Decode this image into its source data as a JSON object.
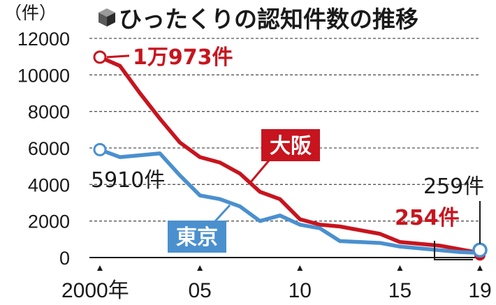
{
  "title": "ひったくりの認知件数の推移",
  "unit_label": "（件）",
  "colors": {
    "osaka": "#c8141e",
    "tokyo": "#4a90cf",
    "grid": "#555555",
    "text": "#1a1a1a"
  },
  "chart_data": {
    "type": "line",
    "title": "ひったくりの認知件数の推移",
    "xlabel": "",
    "ylabel": "（件）",
    "ylim": [
      0,
      12000
    ],
    "yticks": [
      "0",
      "2000",
      "4000",
      "6000",
      "8000",
      "10000",
      "12000"
    ],
    "ytick_values": [
      0,
      2000,
      4000,
      6000,
      8000,
      10000,
      12000
    ],
    "xticks": [
      {
        "year": 2000,
        "label": "2000年"
      },
      {
        "year": 2005,
        "label": "05"
      },
      {
        "year": 2010,
        "label": "10"
      },
      {
        "year": 2015,
        "label": "15"
      },
      {
        "year": 2019,
        "label": "19"
      }
    ],
    "grid": true,
    "x": [
      2000,
      2001,
      2002,
      2003,
      2004,
      2005,
      2006,
      2007,
      2008,
      2009,
      2010,
      2011,
      2012,
      2013,
      2014,
      2015,
      2016,
      2017,
      2018,
      2019
    ],
    "series": [
      {
        "name": "大阪",
        "values": [
          10973,
          10500,
          9000,
          7600,
          6300,
          5500,
          5200,
          4600,
          3600,
          3200,
          2100,
          1800,
          1700,
          1500,
          1300,
          850,
          750,
          650,
          450,
          254
        ]
      },
      {
        "name": "東京",
        "values": [
          5910,
          5500,
          5600,
          5700,
          4500,
          3400,
          3200,
          2800,
          2000,
          2300,
          1800,
          1600,
          900,
          850,
          800,
          600,
          500,
          400,
          300,
          259
        ]
      }
    ],
    "annotations": [
      {
        "text": "1万973件",
        "series": "大阪",
        "year": 2000
      },
      {
        "text": "5910件",
        "series": "東京",
        "year": 2000
      },
      {
        "text": "254件",
        "series": "大阪",
        "year": 2019
      },
      {
        "text": "259件",
        "series": "東京",
        "year": 2019
      }
    ]
  }
}
